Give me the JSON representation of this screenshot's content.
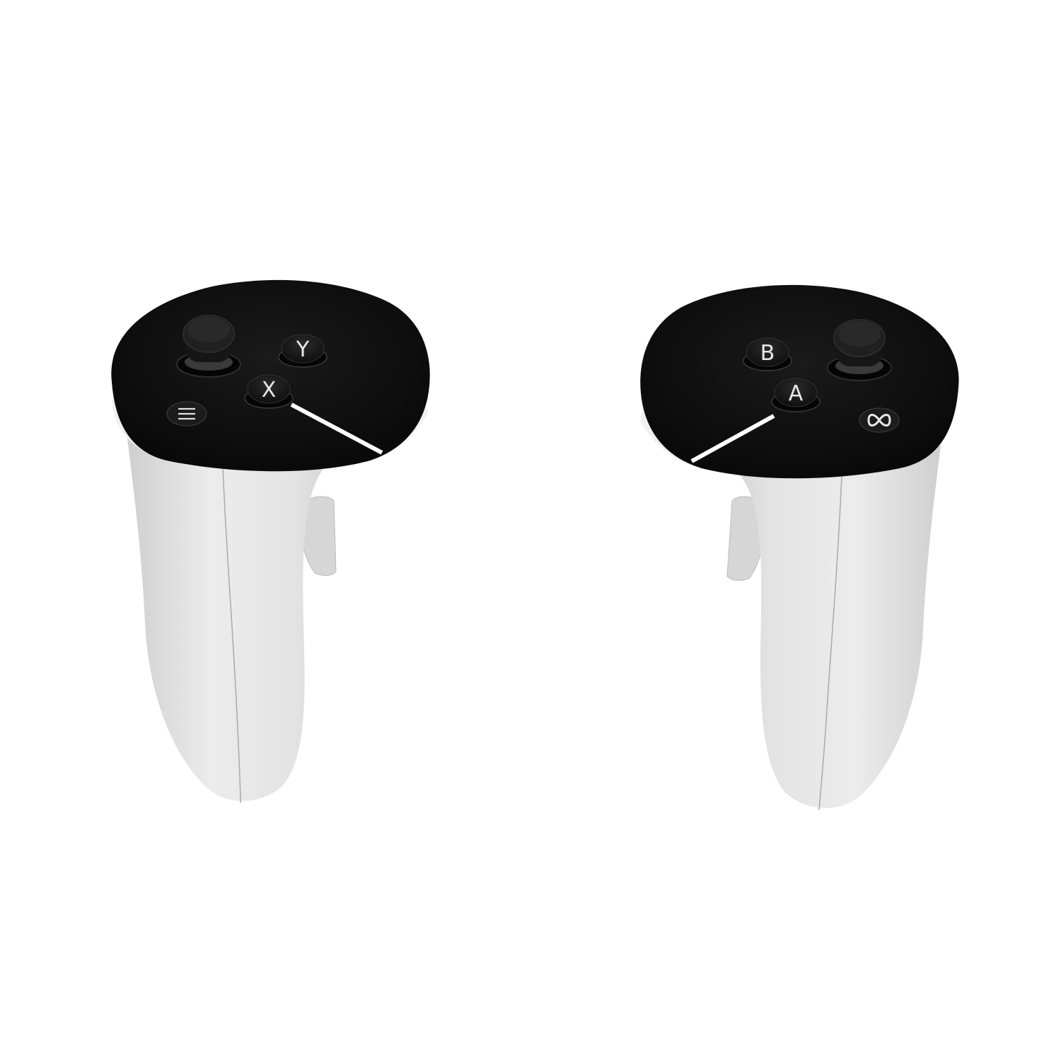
{
  "colors": {
    "background": "#ffffff",
    "shell": "#e6e6e6",
    "shell_shadow": "#c9c9c9",
    "faceplate": "#111111",
    "button": "#1b1b1b",
    "label": "#e8e8e8",
    "leader_line": "#ffffff"
  },
  "left_controller": {
    "buttons": {
      "y_label": "Y",
      "x_label": "X"
    },
    "menu_icon": "menu-lines-icon"
  },
  "right_controller": {
    "buttons": {
      "b_label": "B",
      "a_label": "A"
    },
    "meta_icon": "infinity-icon"
  }
}
